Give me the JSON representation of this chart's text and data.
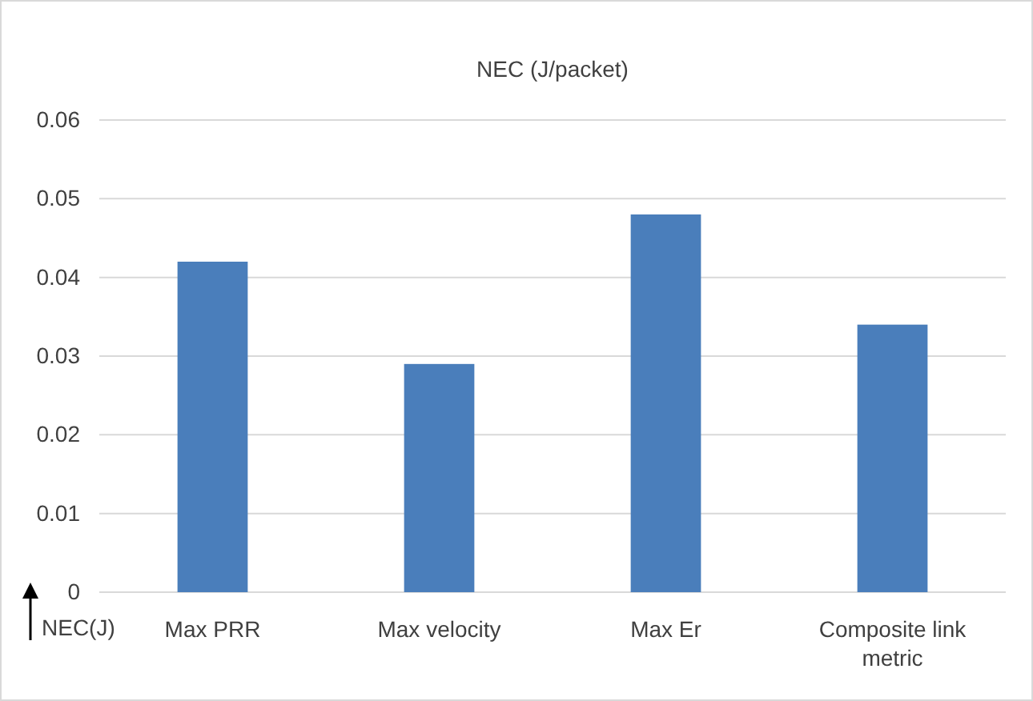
{
  "chart_data": {
    "type": "bar",
    "title": "NEC (J/packet)",
    "ylabel": "NEC(J)",
    "categories": [
      "Max PRR",
      "Max velocity",
      "Max Er",
      "Composite link metric"
    ],
    "values": [
      0.042,
      0.029,
      0.048,
      0.034
    ],
    "color": "#4a7ebb",
    "ylim": [
      0,
      0.06
    ],
    "yticks": [
      0,
      0.01,
      0.02,
      0.03,
      0.04,
      0.05,
      0.06
    ],
    "grid": "y"
  }
}
